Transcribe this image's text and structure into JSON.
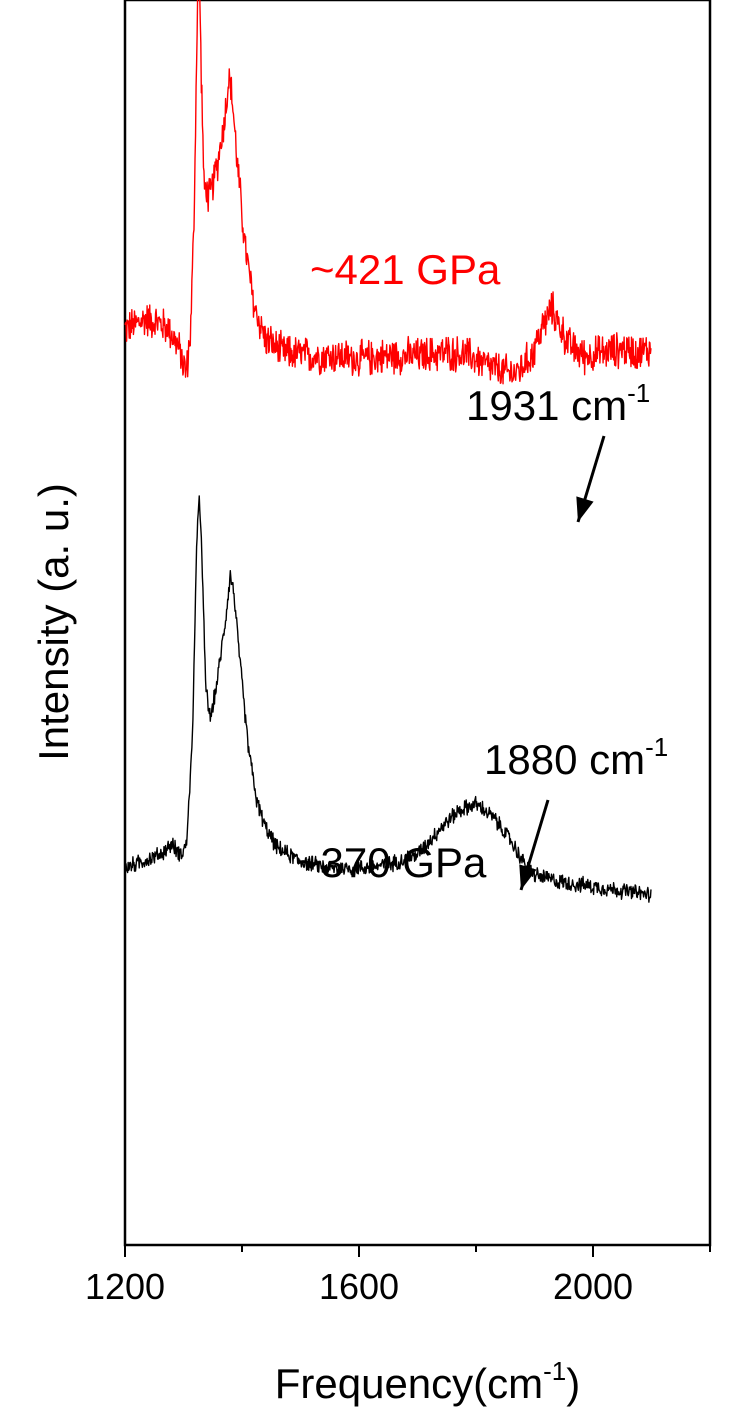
{
  "chart_data": {
    "type": "line",
    "xlabel": "Frequency(cm",
    "xlabel_sup": "-1",
    "xlabel_close": ")",
    "ylabel": "Intensity (a. u.)",
    "xlim": [
      1200,
      2200
    ],
    "x_ticks": [
      1200,
      1600,
      2000
    ],
    "x_minor_ticks": [
      1400,
      1800,
      2200
    ],
    "y_ticks_shown": false,
    "series": [
      {
        "name": "~421 GPa",
        "color": "#ff0000",
        "offset": 1.55,
        "noise": 0.045,
        "points": [
          [
            1200,
            0.13
          ],
          [
            1215,
            0.14
          ],
          [
            1235,
            0.16
          ],
          [
            1255,
            0.15
          ],
          [
            1275,
            0.13
          ],
          [
            1290,
            0.08
          ],
          [
            1305,
            0.0
          ],
          [
            1312,
            0.12
          ],
          [
            1318,
            0.45
          ],
          [
            1323,
            1.0
          ],
          [
            1326,
            1.32
          ],
          [
            1329,
            1.0
          ],
          [
            1335,
            0.55
          ],
          [
            1345,
            0.52
          ],
          [
            1358,
            0.62
          ],
          [
            1370,
            0.75
          ],
          [
            1378,
            0.88
          ],
          [
            1384,
            0.8
          ],
          [
            1392,
            0.62
          ],
          [
            1405,
            0.38
          ],
          [
            1420,
            0.2
          ],
          [
            1440,
            0.1
          ],
          [
            1470,
            0.06
          ],
          [
            1520,
            0.05
          ],
          [
            1560,
            0.05
          ],
          [
            1600,
            0.04
          ],
          [
            1650,
            0.05
          ],
          [
            1700,
            0.05
          ],
          [
            1750,
            0.06
          ],
          [
            1790,
            0.05
          ],
          [
            1820,
            0.02
          ],
          [
            1850,
            0.0
          ],
          [
            1870,
            0.0
          ],
          [
            1895,
            0.05
          ],
          [
            1915,
            0.14
          ],
          [
            1930,
            0.19
          ],
          [
            1945,
            0.13
          ],
          [
            1960,
            0.08
          ],
          [
            1985,
            0.05
          ],
          [
            2020,
            0.06
          ],
          [
            2050,
            0.07
          ],
          [
            2080,
            0.06
          ],
          [
            2100,
            0.07
          ]
        ]
      },
      {
        "name": "~370 GPa",
        "color": "#000000",
        "offset": 0.0,
        "noise": 0.02,
        "points": [
          [
            1200,
            0.08
          ],
          [
            1230,
            0.1
          ],
          [
            1260,
            0.12
          ],
          [
            1280,
            0.15
          ],
          [
            1295,
            0.12
          ],
          [
            1305,
            0.15
          ],
          [
            1315,
            0.45
          ],
          [
            1322,
            1.0
          ],
          [
            1327,
            1.2
          ],
          [
            1331,
            1.02
          ],
          [
            1338,
            0.62
          ],
          [
            1346,
            0.52
          ],
          [
            1358,
            0.64
          ],
          [
            1372,
            0.82
          ],
          [
            1380,
            0.95
          ],
          [
            1386,
            0.9
          ],
          [
            1395,
            0.72
          ],
          [
            1410,
            0.45
          ],
          [
            1425,
            0.28
          ],
          [
            1440,
            0.2
          ],
          [
            1460,
            0.14
          ],
          [
            1500,
            0.1
          ],
          [
            1550,
            0.08
          ],
          [
            1600,
            0.08
          ],
          [
            1650,
            0.09
          ],
          [
            1700,
            0.12
          ],
          [
            1740,
            0.2
          ],
          [
            1770,
            0.25
          ],
          [
            1800,
            0.27
          ],
          [
            1830,
            0.23
          ],
          [
            1860,
            0.16
          ],
          [
            1880,
            0.1
          ],
          [
            1900,
            0.06
          ],
          [
            1940,
            0.04
          ],
          [
            1980,
            0.03
          ],
          [
            2020,
            0.02
          ],
          [
            2060,
            0.01
          ],
          [
            2100,
            0.0
          ]
        ]
      }
    ],
    "annotations": [
      {
        "id": "label-421",
        "text": "~421 GPa",
        "color": "#ff0000",
        "sup": ""
      },
      {
        "id": "peak-1931",
        "text": "1931 cm",
        "sup": "-1",
        "color": "#000000",
        "x": 1931
      },
      {
        "id": "label-370",
        "text": "~370 GPa",
        "color": "#000000",
        "sup": ""
      },
      {
        "id": "peak-1880",
        "text": "1880 cm",
        "sup": "-1",
        "color": "#000000",
        "x": 1880
      }
    ]
  }
}
